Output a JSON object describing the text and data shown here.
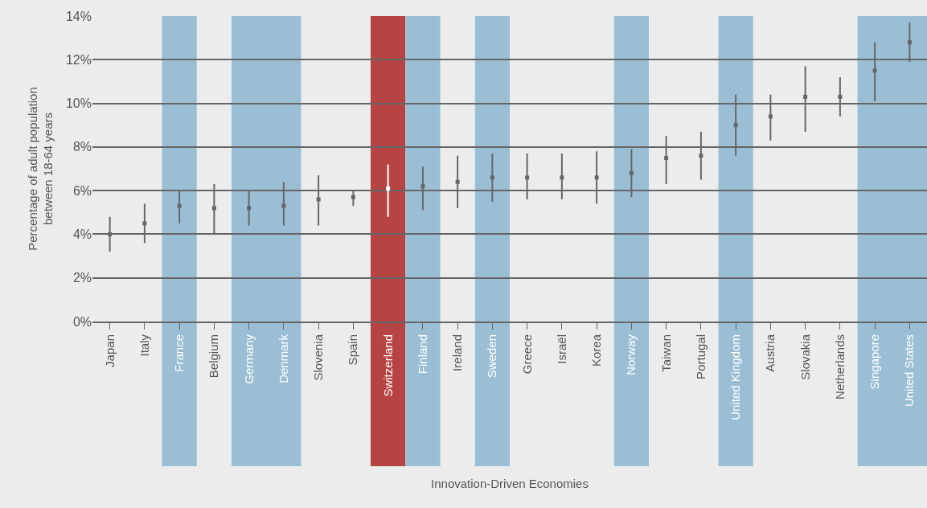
{
  "chart_data": {
    "type": "scatter",
    "xlabel": "Innovation-Driven Economies",
    "ylabel": "Percentage of adult population\nbetween 18-64 years",
    "categories": [
      "Japan",
      "Italy",
      "France",
      "Belgium",
      "Germany",
      "Denmark",
      "Slovenia",
      "Spain",
      "Switzerland",
      "Finland",
      "Ireland",
      "Sweden",
      "Greece",
      "Israël",
      "Korea",
      "Norway",
      "Taiwan",
      "Portugal",
      "United Kingdom",
      "Austria",
      "Slovakia",
      "Netherlands",
      "Singapore",
      "United States"
    ],
    "values": [
      4.0,
      4.5,
      5.3,
      5.2,
      5.2,
      5.3,
      5.6,
      5.7,
      6.1,
      6.2,
      6.4,
      6.6,
      6.6,
      6.6,
      6.6,
      6.8,
      7.5,
      7.6,
      9.0,
      9.4,
      10.3,
      10.3,
      11.5,
      12.8
    ],
    "errors": [
      [
        3.2,
        4.8
      ],
      [
        3.6,
        5.4
      ],
      [
        4.5,
        6.0
      ],
      [
        4.0,
        6.3
      ],
      [
        4.4,
        6.0
      ],
      [
        4.4,
        6.4
      ],
      [
        4.4,
        6.7
      ],
      [
        5.3,
        6.0
      ],
      [
        4.8,
        7.2
      ],
      [
        5.1,
        7.1
      ],
      [
        5.2,
        7.6
      ],
      [
        5.5,
        7.7
      ],
      [
        5.6,
        7.7
      ],
      [
        5.6,
        7.7
      ],
      [
        5.4,
        7.8
      ],
      [
        5.7,
        7.9
      ],
      [
        6.3,
        8.5
      ],
      [
        6.5,
        8.7
      ],
      [
        7.6,
        10.4
      ],
      [
        8.3,
        10.4
      ],
      [
        8.7,
        11.7
      ],
      [
        9.4,
        11.2
      ],
      [
        10.1,
        12.8
      ],
      [
        11.9,
        13.7
      ]
    ],
    "colors": [
      "#666666",
      "#666666",
      "#666666",
      "#666666",
      "#666666",
      "#666666",
      "#666666",
      "#666666",
      "#ffffff",
      "#666666",
      "#666666",
      "#666666",
      "#666666",
      "#666666",
      "#666666",
      "#666666",
      "#666666",
      "#666666",
      "#666666",
      "#666666",
      "#666666",
      "#666666",
      "#666666",
      "#666666"
    ],
    "marker": "square",
    "ylim": [
      0,
      14
    ],
    "yticks": [
      {
        "value": 0,
        "label": "0%"
      },
      {
        "value": 2,
        "label": "2%"
      },
      {
        "value": 4,
        "label": "4%"
      },
      {
        "value": 6,
        "label": "6%"
      },
      {
        "value": 8,
        "label": "8%"
      },
      {
        "value": 10,
        "label": "10%"
      },
      {
        "value": 12,
        "label": "12%"
      },
      {
        "value": 14,
        "label": "14%"
      }
    ],
    "grid": "y",
    "bands": [
      {
        "axis": "x",
        "from": "France",
        "to": "France",
        "color": "#9abfd4"
      },
      {
        "axis": "x",
        "from": "Germany",
        "to": "Denmark",
        "color": "#9abfd4"
      },
      {
        "axis": "x",
        "from": "Switzerland",
        "to": "Switzerland",
        "color": "#b54442"
      },
      {
        "axis": "x",
        "from": "Finland",
        "to": "Finland",
        "color": "#9abfd4"
      },
      {
        "axis": "x",
        "from": "Sweden",
        "to": "Sweden",
        "color": "#9abfd4"
      },
      {
        "axis": "x",
        "from": "Norway",
        "to": "Norway",
        "color": "#9abfd4"
      },
      {
        "axis": "x",
        "from": "United Kingdom",
        "to": "United Kingdom",
        "color": "#9abfd4"
      },
      {
        "axis": "x",
        "from": "Singapore",
        "to": "United States",
        "color": "#9abfd4"
      }
    ]
  }
}
